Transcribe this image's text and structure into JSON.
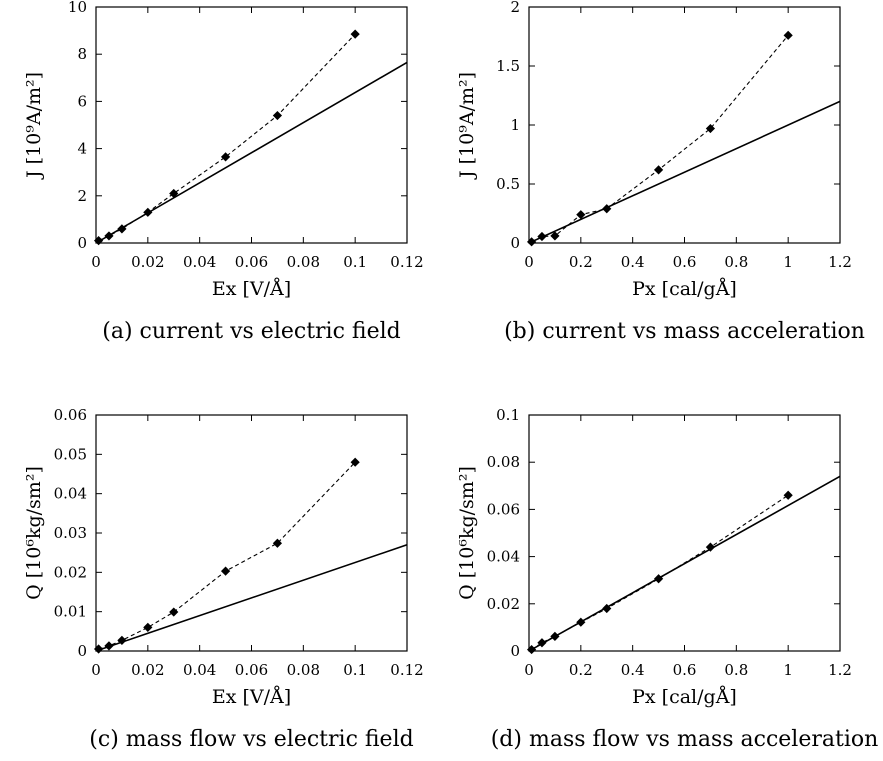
{
  "chart_data": [
    {
      "type": "line",
      "caption": "(a) current vs electric field",
      "ylabel": "J  [10⁹A/m²]",
      "xlabel": "Ex  [V/Å]",
      "xlim": [
        0,
        0.12
      ],
      "ylim": [
        0,
        10
      ],
      "xticks": [
        "0",
        "0.02",
        "0.04",
        "0.06",
        "0.08",
        "0.1",
        "0.12"
      ],
      "yticks": [
        "0",
        "2",
        "4",
        "6",
        "8",
        "10"
      ],
      "x": [
        0.001,
        0.005,
        0.01,
        0.02,
        0.03,
        0.05,
        0.07,
        0.1
      ],
      "series": [
        {
          "style": "dashed-diamond",
          "values": [
            0.1,
            0.3,
            0.6,
            1.3,
            2.1,
            3.65,
            5.4,
            8.85
          ]
        }
      ],
      "fit_line": {
        "x": [
          0,
          0.12
        ],
        "y": [
          0,
          7.65
        ]
      }
    },
    {
      "type": "line",
      "caption": "(b) current vs mass acceleration",
      "ylabel": "J  [10⁹A/m²]",
      "xlabel": "Px  [cal/gÅ]",
      "xlim": [
        0,
        1.2
      ],
      "ylim": [
        0,
        2
      ],
      "xticks": [
        "0",
        "0.2",
        "0.4",
        "0.6",
        "0.8",
        "1",
        "1.2"
      ],
      "yticks": [
        "0",
        "0.5",
        "1",
        "1.5",
        "2"
      ],
      "x": [
        0.01,
        0.05,
        0.1,
        0.2,
        0.3,
        0.5,
        0.7,
        1.0
      ],
      "series": [
        {
          "style": "dashed-diamond",
          "values": [
            0.01,
            0.055,
            0.06,
            0.24,
            0.29,
            0.62,
            0.97,
            1.76
          ]
        }
      ],
      "fit_line": {
        "x": [
          0,
          1.2
        ],
        "y": [
          0,
          1.2
        ]
      }
    },
    {
      "type": "line",
      "caption": "(c) mass flow vs electric field",
      "ylabel": "Q  [10⁶kg/sm²]",
      "xlabel": "Ex  [V/Å]",
      "xlim": [
        0,
        0.12
      ],
      "ylim": [
        0,
        0.06
      ],
      "xticks": [
        "0",
        "0.02",
        "0.04",
        "0.06",
        "0.08",
        "0.1",
        "0.12"
      ],
      "yticks": [
        "0",
        "0.01",
        "0.02",
        "0.03",
        "0.04",
        "0.05",
        "0.06"
      ],
      "x": [
        0.001,
        0.005,
        0.01,
        0.02,
        0.03,
        0.05,
        0.07,
        0.1
      ],
      "series": [
        {
          "style": "dashed-diamond",
          "values": [
            0.0005,
            0.0013,
            0.0027,
            0.006,
            0.0099,
            0.0203,
            0.0274,
            0.048
          ]
        }
      ],
      "fit_line": {
        "x": [
          0,
          0.12
        ],
        "y": [
          0,
          0.027
        ]
      }
    },
    {
      "type": "line",
      "caption": "(d) mass flow vs mass acceleration",
      "ylabel": "Q  [10⁶kg/sm²]",
      "xlabel": "Px  [cal/gÅ]",
      "xlim": [
        0,
        1.2
      ],
      "ylim": [
        0,
        0.1
      ],
      "xticks": [
        "0",
        "0.2",
        "0.4",
        "0.6",
        "0.8",
        "1",
        "1.2"
      ],
      "yticks": [
        "0",
        "0.02",
        "0.04",
        "0.06",
        "0.08",
        "0.1"
      ],
      "x": [
        0.01,
        0.05,
        0.1,
        0.2,
        0.3,
        0.5,
        0.7,
        1.0
      ],
      "series": [
        {
          "style": "dashed-diamond",
          "values": [
            0.0006,
            0.0035,
            0.0062,
            0.0122,
            0.018,
            0.0306,
            0.044,
            0.066
          ]
        }
      ],
      "fit_line": {
        "x": [
          0,
          1.2
        ],
        "y": [
          0,
          0.074
        ]
      }
    }
  ]
}
